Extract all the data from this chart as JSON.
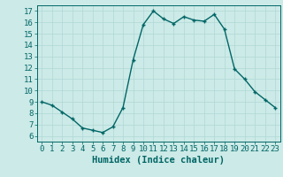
{
  "x": [
    0,
    1,
    2,
    3,
    4,
    5,
    6,
    7,
    8,
    9,
    10,
    11,
    12,
    13,
    14,
    15,
    16,
    17,
    18,
    19,
    20,
    21,
    22,
    23
  ],
  "y": [
    9,
    8.7,
    8.1,
    7.5,
    6.7,
    6.5,
    6.3,
    6.8,
    8.5,
    12.7,
    15.8,
    17.0,
    16.3,
    15.9,
    16.5,
    16.2,
    16.1,
    16.7,
    15.4,
    11.9,
    11.0,
    9.9,
    9.2,
    8.5
  ],
  "line_color": "#006666",
  "marker": "+",
  "marker_size": 3,
  "bg_color": "#cceae7",
  "grid_color": "#b0d8d5",
  "xlabel": "Humidex (Indice chaleur)",
  "xlim": [
    -0.5,
    23.5
  ],
  "ylim": [
    5.5,
    17.5
  ],
  "yticks": [
    6,
    7,
    8,
    9,
    10,
    11,
    12,
    13,
    14,
    15,
    16,
    17
  ],
  "xticks": [
    0,
    1,
    2,
    3,
    4,
    5,
    6,
    7,
    8,
    9,
    10,
    11,
    12,
    13,
    14,
    15,
    16,
    17,
    18,
    19,
    20,
    21,
    22,
    23
  ],
  "tick_label_size": 6.5,
  "xlabel_size": 7.5,
  "xlabel_weight": "bold",
  "line_width": 1.0
}
